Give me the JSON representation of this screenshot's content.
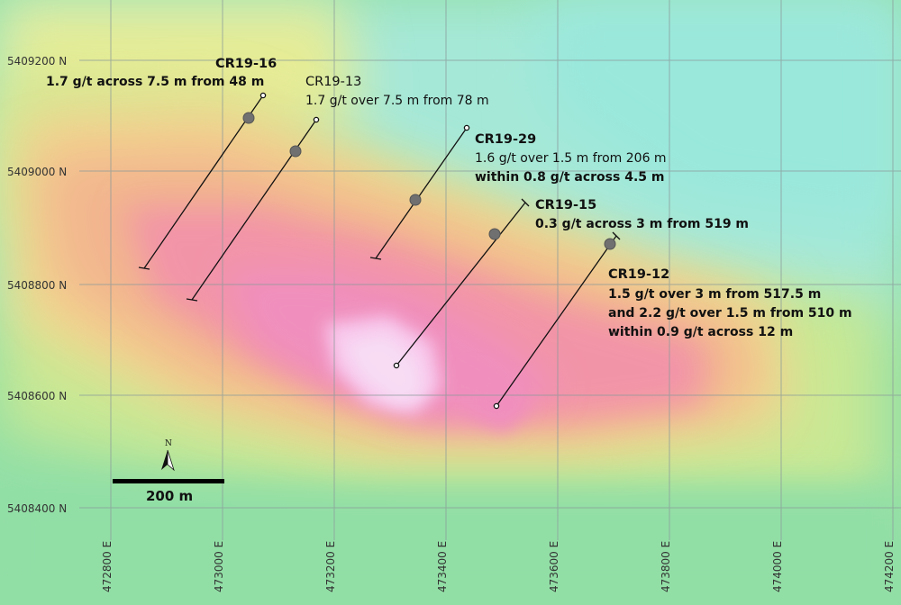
{
  "map": {
    "northing_labels": [
      "5409200 N",
      "5409000 N",
      "5408800 N",
      "5408600 N",
      "5408400 N"
    ],
    "easting_labels": [
      "472800 E",
      "473000 E",
      "473200 E",
      "473400 E",
      "473600 E",
      "473800 E",
      "474000 E",
      "474200 E"
    ],
    "scale_bar_label": "200 m",
    "north_arrow_label": "N",
    "colors": {
      "grid": "#8a9a9a",
      "drill_trace": "#111111",
      "intercept_marker": "#707070",
      "anomaly_high": "#f5d8f2",
      "anomaly_mid": "#f08fbd",
      "background_low": "#a6e8d8"
    }
  },
  "drill_holes": [
    {
      "id": "CR19-16",
      "lines": [
        "1.7 g/t across 7.5 m from 48 m"
      ],
      "bold": true
    },
    {
      "id": "CR19-13",
      "lines": [
        "1.7 g/t over 7.5 m from 78 m"
      ],
      "bold": false
    },
    {
      "id": "CR19-29",
      "lines": [
        "1.6 g/t over 1.5 m from 206 m",
        "within 0.8 g/t across 4.5 m"
      ],
      "bold": true
    },
    {
      "id": "CR19-15",
      "lines": [
        "0.3 g/t across 3 m from 519 m"
      ],
      "bold": true
    },
    {
      "id": "CR19-12",
      "lines": [
        "1.5 g/t over 3 m from 517.5 m",
        "and 2.2 g/t over 1.5 m from 510 m",
        "within 0.9 g/t across 12 m"
      ],
      "bold": true
    }
  ]
}
